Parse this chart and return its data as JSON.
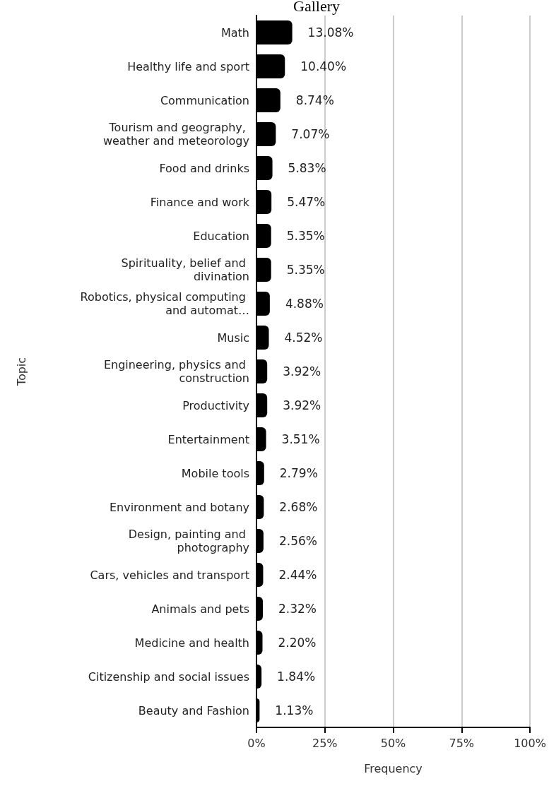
{
  "chart_data": {
    "type": "bar",
    "orientation": "horizontal",
    "title": "Gallery",
    "xlabel": "Frequency",
    "ylabel": "Topic",
    "categories": [
      "Math",
      "Healthy life and sport",
      "Communication",
      "Tourism and geography, weather and meteorology",
      "Food and drinks",
      "Finance and work",
      "Education",
      "Spirituality, belief and divination",
      "Robotics, physical computing and automat…",
      "Music",
      "Engineering, physics and construction",
      "Productivity",
      "Entertainment",
      "Mobile tools",
      "Environment and botany",
      "Design, painting and photography",
      "Cars, vehicles and transport",
      "Animals and pets",
      "Medicine and health",
      "Citizenship and social issues",
      "Beauty and Fashion"
    ],
    "values": [
      13.08,
      10.4,
      8.74,
      7.07,
      5.83,
      5.47,
      5.35,
      5.35,
      4.88,
      4.52,
      3.92,
      3.92,
      3.51,
      2.79,
      2.68,
      2.56,
      2.44,
      2.32,
      2.2,
      1.84,
      1.13
    ],
    "value_labels": [
      "13.08%",
      "10.40%",
      "8.74%",
      "7.07%",
      "5.83%",
      "5.47%",
      "5.35%",
      "5.35%",
      "4.88%",
      "4.52%",
      "3.92%",
      "3.92%",
      "3.51%",
      "2.79%",
      "2.68%",
      "2.56%",
      "2.44%",
      "2.32%",
      "2.20%",
      "1.84%",
      "1.13%"
    ],
    "color": "#000000",
    "xlim": [
      0,
      100
    ],
    "xticks": [
      {
        "value": 0,
        "label": "0%"
      },
      {
        "value": 25,
        "label": "25%"
      },
      {
        "value": 50,
        "label": "50%"
      },
      {
        "value": 75,
        "label": "75%"
      },
      {
        "value": 100,
        "label": "100%"
      }
    ],
    "grid": "x"
  }
}
